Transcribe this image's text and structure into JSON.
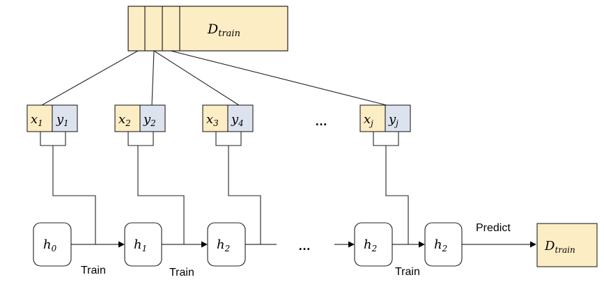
{
  "dataset_top": {
    "main": "D",
    "sub": "train"
  },
  "samples": [
    {
      "x_main": "x",
      "x_sub": "1",
      "y_main": "y",
      "y_sub": "1"
    },
    {
      "x_main": "x",
      "x_sub": "2",
      "y_main": "y",
      "y_sub": "2"
    },
    {
      "x_main": "x",
      "x_sub": "3",
      "y_main": "y",
      "y_sub": "4"
    },
    {
      "x_main": "x",
      "x_sub": "j",
      "y_main": "y",
      "y_sub": "j"
    }
  ],
  "samples_ellipsis": "…",
  "models": [
    {
      "main": "h",
      "sub": "0"
    },
    {
      "main": "h",
      "sub": "1"
    },
    {
      "main": "h",
      "sub": "2"
    },
    {
      "main": "h",
      "sub": "2"
    },
    {
      "main": "h",
      "sub": "2"
    }
  ],
  "models_ellipsis": "…",
  "train_labels": [
    "Train",
    "Train",
    "Train"
  ],
  "predict_label": "Predict",
  "dataset_output": {
    "main": "D",
    "sub": "train"
  },
  "colors": {
    "yellow": "#fdedc4",
    "blue": "#dde3ee",
    "stroke": "#222222"
  }
}
